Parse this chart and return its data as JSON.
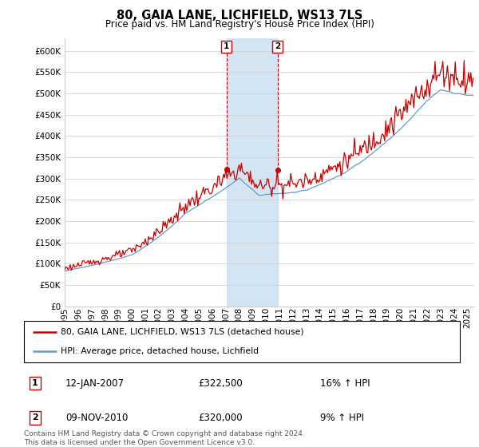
{
  "title": "80, GAIA LANE, LICHFIELD, WS13 7LS",
  "subtitle": "Price paid vs. HM Land Registry's House Price Index (HPI)",
  "ylabel_ticks": [
    0,
    50000,
    100000,
    150000,
    200000,
    250000,
    300000,
    350000,
    400000,
    450000,
    500000,
    550000,
    600000
  ],
  "ylim": [
    0,
    630000
  ],
  "xlim_start": 1995.0,
  "xlim_end": 2025.5,
  "annotation1": {
    "label": "1",
    "date_str": "12-JAN-2007",
    "price": 322500,
    "price_str": "£322,500",
    "pct": "16%",
    "dir": "↑",
    "x_year": 2007.04
  },
  "annotation2": {
    "label": "2",
    "date_str": "09-NOV-2010",
    "price": 320000,
    "price_str": "£320,000",
    "pct": "9%",
    "dir": "↑",
    "x_year": 2010.85
  },
  "legend_line1": "80, GAIA LANE, LICHFIELD, WS13 7LS (detached house)",
  "legend_line2": "HPI: Average price, detached house, Lichfield",
  "footer": "Contains HM Land Registry data © Crown copyright and database right 2024.\nThis data is licensed under the Open Government Licence v3.0.",
  "color_red": "#cc0000",
  "color_blue": "#6699cc",
  "color_shade": "#cce0f0",
  "background_color": "#ffffff",
  "grid_color": "#cccccc"
}
